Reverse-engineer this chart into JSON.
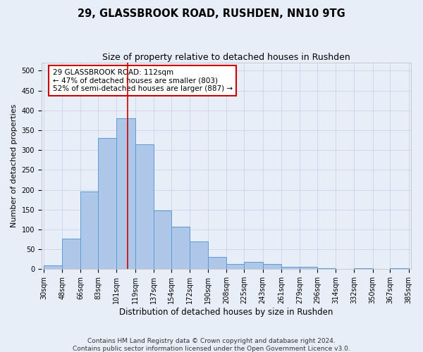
{
  "title": "29, GLASSBROOK ROAD, RUSHDEN, NN10 9TG",
  "subtitle": "Size of property relative to detached houses in Rushden",
  "xlabel": "Distribution of detached houses by size in Rushden",
  "ylabel": "Number of detached properties",
  "bin_edges": [
    30,
    48,
    66,
    83,
    101,
    119,
    137,
    154,
    172,
    190,
    208,
    225,
    243,
    261,
    279,
    296,
    314,
    332,
    350,
    367,
    385
  ],
  "bar_heights": [
    9,
    77,
    196,
    330,
    380,
    315,
    148,
    107,
    70,
    30,
    13,
    19,
    12,
    5,
    5,
    3,
    0,
    2,
    0,
    3
  ],
  "bar_color": "#aec6e8",
  "bar_edge_color": "#5b9bd5",
  "vline_x": 112,
  "vline_color": "#cc0000",
  "annotation_line1": "29 GLASSBROOK ROAD: 112sqm",
  "annotation_line2": "← 47% of detached houses are smaller (803)",
  "annotation_line3": "52% of semi-detached houses are larger (887) →",
  "annotation_fontsize": 7.5,
  "grid_color": "#c8d4e8",
  "background_color": "#e8eef8",
  "plot_bg_color": "#e8eef8",
  "ylim": [
    0,
    520
  ],
  "yticks": [
    0,
    50,
    100,
    150,
    200,
    250,
    300,
    350,
    400,
    450,
    500
  ],
  "footer_line1": "Contains HM Land Registry data © Crown copyright and database right 2024.",
  "footer_line2": "Contains public sector information licensed under the Open Government Licence v3.0.",
  "title_fontsize": 10.5,
  "subtitle_fontsize": 9,
  "xlabel_fontsize": 8.5,
  "ylabel_fontsize": 8,
  "tick_fontsize": 7,
  "footer_fontsize": 6.5
}
